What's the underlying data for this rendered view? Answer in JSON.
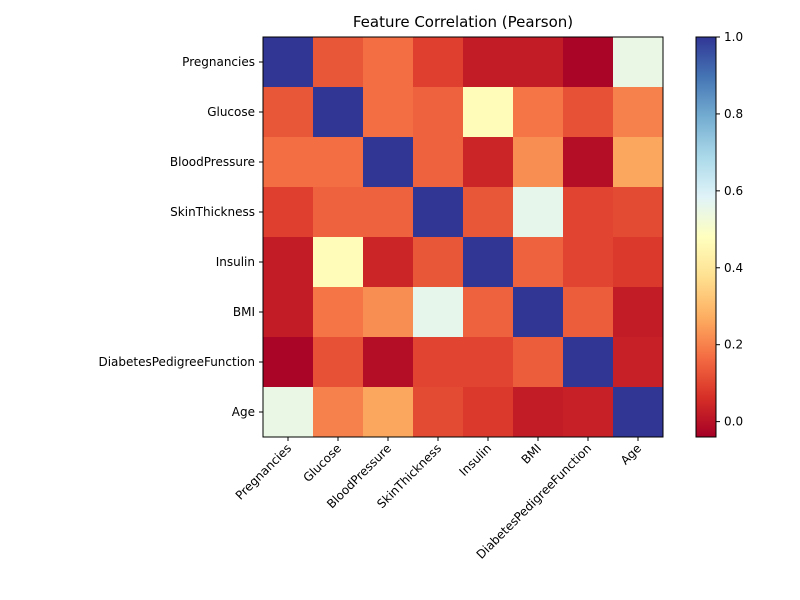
{
  "chart_data": {
    "type": "heatmap",
    "title": "Feature Correlation (Pearson)",
    "xlabel": "",
    "ylabel": "",
    "x_labels": [
      "Pregnancies",
      "Glucose",
      "BloodPressure",
      "SkinThickness",
      "Insulin",
      "BMI",
      "DiabetesPedigreeFunction",
      "Age"
    ],
    "y_labels": [
      "Pregnancies",
      "Glucose",
      "BloodPressure",
      "SkinThickness",
      "Insulin",
      "BMI",
      "DiabetesPedigreeFunction",
      "Age"
    ],
    "values": [
      [
        1.0,
        0.13,
        0.17,
        0.09,
        0.02,
        0.02,
        -0.03,
        0.55
      ],
      [
        0.13,
        1.0,
        0.17,
        0.15,
        0.47,
        0.18,
        0.12,
        0.2
      ],
      [
        0.17,
        0.17,
        1.0,
        0.15,
        0.04,
        0.22,
        -0.01,
        0.26
      ],
      [
        0.09,
        0.15,
        0.15,
        1.0,
        0.13,
        0.56,
        0.1,
        0.11
      ],
      [
        0.02,
        0.47,
        0.04,
        0.13,
        1.0,
        0.15,
        0.1,
        0.08
      ],
      [
        0.02,
        0.18,
        0.22,
        0.56,
        0.15,
        1.0,
        0.14,
        0.02
      ],
      [
        -0.03,
        0.12,
        -0.01,
        0.1,
        0.1,
        0.14,
        1.0,
        0.03
      ],
      [
        0.55,
        0.2,
        0.26,
        0.11,
        0.08,
        0.02,
        0.03,
        1.0
      ]
    ],
    "colormap": "RdYlBu",
    "vmin": -0.04,
    "vmax": 1.0,
    "colorbar_ticks": [
      "0.0",
      "0.2",
      "0.4",
      "0.6",
      "0.8",
      "1.0"
    ],
    "colorbar_tick_values": [
      0.0,
      0.2,
      0.4,
      0.6,
      0.8,
      1.0
    ],
    "grid": false,
    "legend": "colorbar-right"
  }
}
